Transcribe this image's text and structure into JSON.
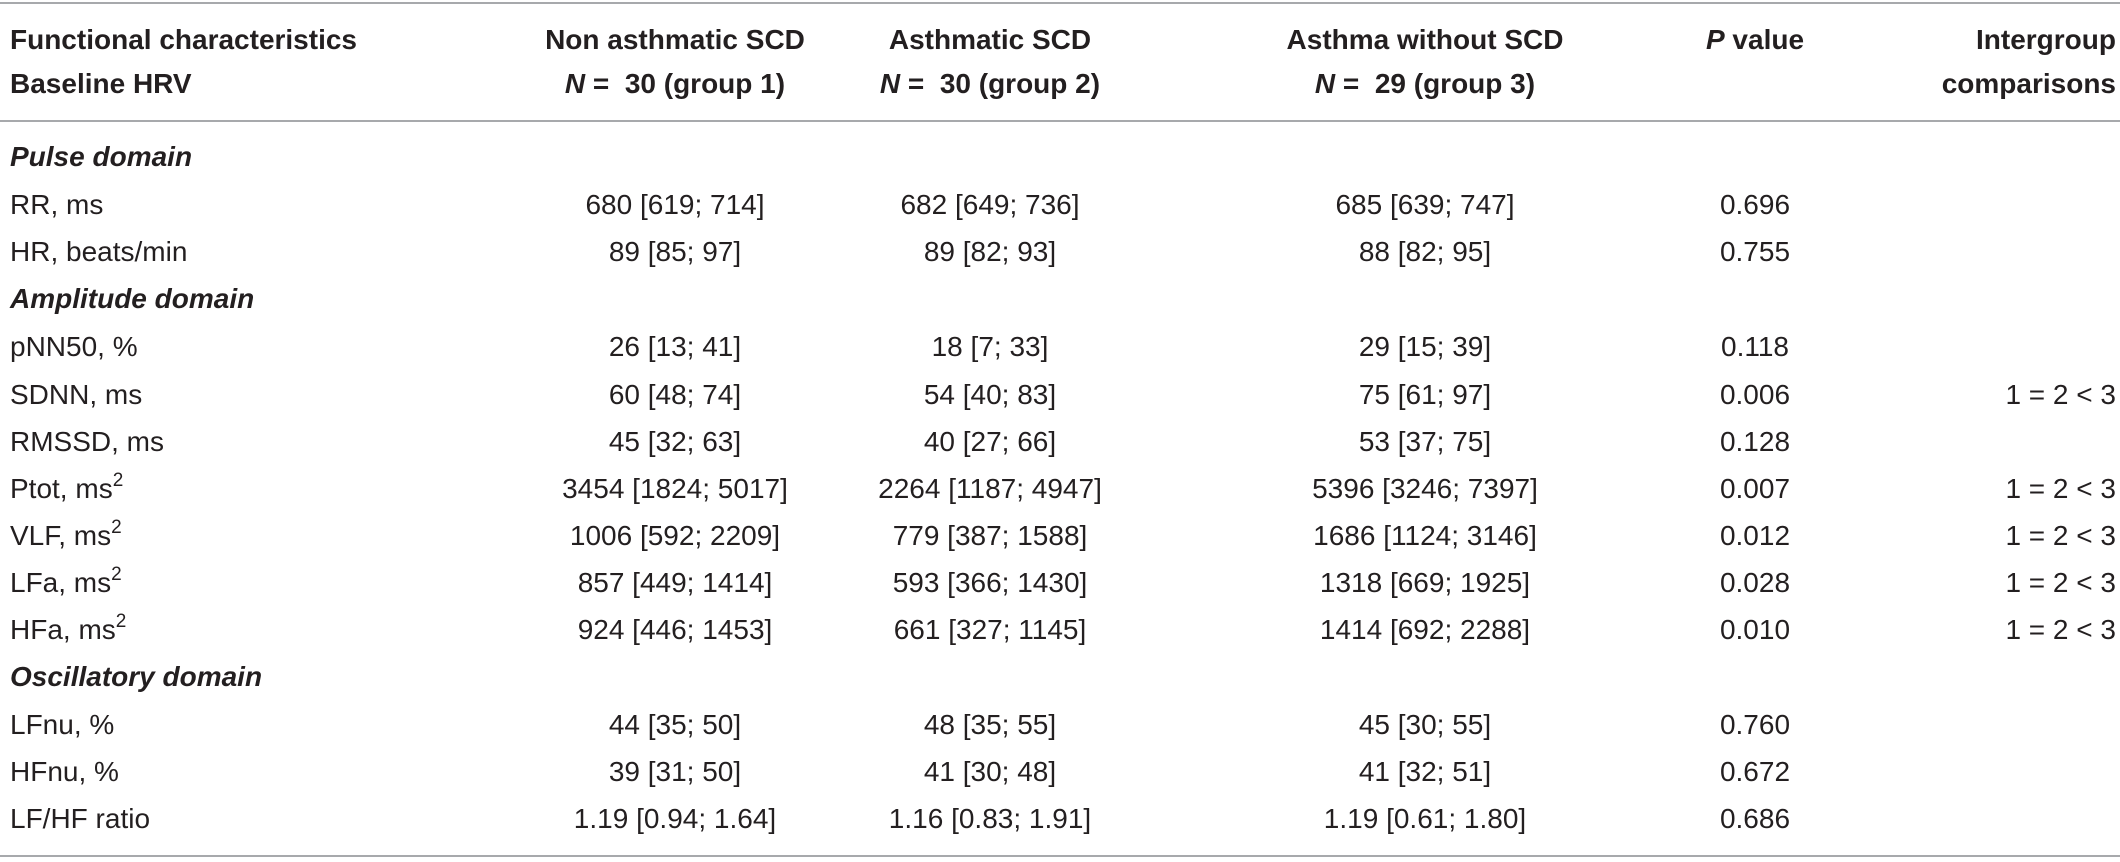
{
  "header": {
    "col0_line1": "Functional characteristics",
    "col0_line2": "Baseline HRV",
    "group1_line1": "Non asthmatic SCD",
    "group2_line1": "Asthmatic SCD",
    "group3_line1": "Asthma without SCD",
    "n_letter": "N",
    "group1_line2": " =  30 (group 1)",
    "group2_line2": " =  30 (group 2)",
    "group3_line2": " =  29 (group 3)",
    "p_letter": "P",
    "p_rest": " value",
    "intergroup_line1": "Intergroup",
    "intergroup_line2": "comparisons"
  },
  "sections": {
    "pulse": "Pulse domain",
    "amplitude": "Amplitude domain",
    "oscillatory": "Oscillatory domain"
  },
  "rows": {
    "rr": {
      "label": "RR, ms",
      "g1": "680 [619; 714]",
      "g2": "682 [649; 736]",
      "g3": "685 [639; 747]",
      "p": "0.696",
      "cmp": ""
    },
    "hr": {
      "label": "HR, beats/min",
      "g1": "89 [85; 97]",
      "g2": "89 [82; 93]",
      "g3": "88 [82; 95]",
      "p": "0.755",
      "cmp": ""
    },
    "pnn50": {
      "label": "pNN50, %",
      "g1": "26 [13; 41]",
      "g2": "18 [7; 33]",
      "g3": "29 [15; 39]",
      "p": "0.118",
      "cmp": ""
    },
    "sdnn": {
      "label": "SDNN, ms",
      "g1": "60 [48; 74]",
      "g2": "54 [40; 83]",
      "g3": "75 [61; 97]",
      "p": "0.006",
      "cmp": "1 = 2 < 3"
    },
    "rmssd": {
      "label": "RMSSD, ms",
      "g1": "45 [32; 63]",
      "g2": "40 [27; 66]",
      "g3": "53 [37; 75]",
      "p": "0.128",
      "cmp": ""
    },
    "ptot": {
      "label": "Ptot, ms",
      "sup": "2",
      "g1": "3454 [1824; 5017]",
      "g2": "2264 [1187; 4947]",
      "g3": "5396 [3246; 7397]",
      "p": "0.007",
      "cmp": "1 = 2 < 3"
    },
    "vlf": {
      "label": "VLF, ms",
      "sup": "2",
      "g1": "1006 [592; 2209]",
      "g2": "779 [387; 1588]",
      "g3": "1686 [1124; 3146]",
      "p": "0.012",
      "cmp": "1 = 2 < 3"
    },
    "lfa": {
      "label": "LFa, ms",
      "sup": "2",
      "g1": "857 [449; 1414]",
      "g2": "593 [366; 1430]",
      "g3": "1318 [669; 1925]",
      "p": "0.028",
      "cmp": "1 = 2 < 3"
    },
    "hfa": {
      "label": "HFa, ms",
      "sup": "2",
      "g1": "924 [446; 1453]",
      "g2": "661 [327; 1145]",
      "g3": "1414 [692; 2288]",
      "p": "0.010",
      "cmp": "1 = 2 < 3"
    },
    "lfnu": {
      "label": "LFnu, %",
      "g1": "44 [35; 50]",
      "g2": "48 [35; 55]",
      "g3": "45 [30; 55]",
      "p": "0.760",
      "cmp": ""
    },
    "hfnu": {
      "label": "HFnu, %",
      "g1": "39 [31; 50]",
      "g2": "41 [30; 48]",
      "g3": "41 [32; 51]",
      "p": "0.672",
      "cmp": ""
    },
    "lfhf": {
      "label": "LF/HF ratio",
      "g1": "1.19 [0.94; 1.64]",
      "g2": "1.16 [0.83; 1.91]",
      "g3": "1.19 [0.61; 1.80]",
      "p": "0.686",
      "cmp": ""
    }
  }
}
